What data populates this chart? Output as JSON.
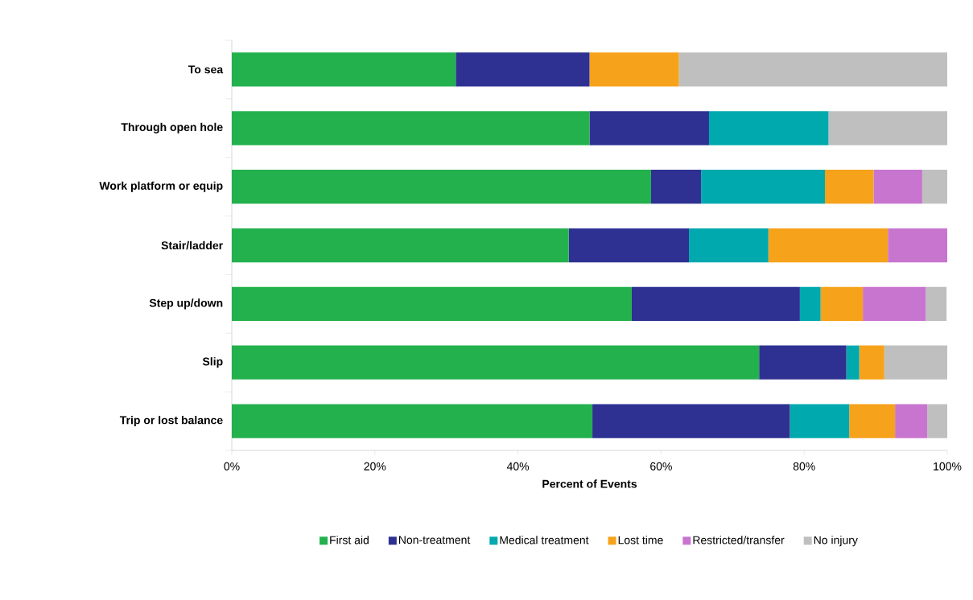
{
  "chart_data": {
    "type": "bar",
    "orientation": "horizontal",
    "stacked": true,
    "xlabel": "Percent of Events",
    "categories": [
      "To sea",
      "Through open hole",
      "Work platform or equip",
      "Stair/ladder",
      "Step up/down",
      "Slip",
      "Trip or lost balance"
    ],
    "series": [
      {
        "name": "First aid",
        "color": "#23b14d",
        "values": [
          31.3,
          50,
          58.6,
          47.1,
          55.9,
          73.7,
          50.4
        ]
      },
      {
        "name": "Non-treatment",
        "color": "#2e3192",
        "values": [
          18.7,
          16.7,
          7.0,
          16.8,
          23.5,
          12.2,
          27.6
        ]
      },
      {
        "name": "Medical treatment",
        "color": "#00a9ae",
        "values": [
          0,
          16.7,
          17.3,
          11.1,
          2.9,
          1.8,
          8.3
        ]
      },
      {
        "name": "Lost time",
        "color": "#f7a21b",
        "values": [
          12.5,
          0,
          6.8,
          16.7,
          5.9,
          3.5,
          6.4
        ]
      },
      {
        "name": "Restricted/transfer",
        "color": "#c875d0",
        "values": [
          0,
          0,
          6.8,
          8.3,
          8.8,
          0,
          4.5
        ]
      },
      {
        "name": "No injury",
        "color": "#bfbfbf",
        "values": [
          37.5,
          16.6,
          3.5,
          0,
          2.9,
          8.8,
          2.8
        ]
      }
    ],
    "xlim": [
      0,
      100
    ],
    "xticks": [
      {
        "value": 0,
        "label": "0%"
      },
      {
        "value": 20,
        "label": "20%"
      },
      {
        "value": 40,
        "label": "40%"
      },
      {
        "value": 60,
        "label": "60%"
      },
      {
        "value": 80,
        "label": "80%"
      },
      {
        "value": 100,
        "label": "100%"
      }
    ],
    "grid": false,
    "legend": "bottom"
  }
}
